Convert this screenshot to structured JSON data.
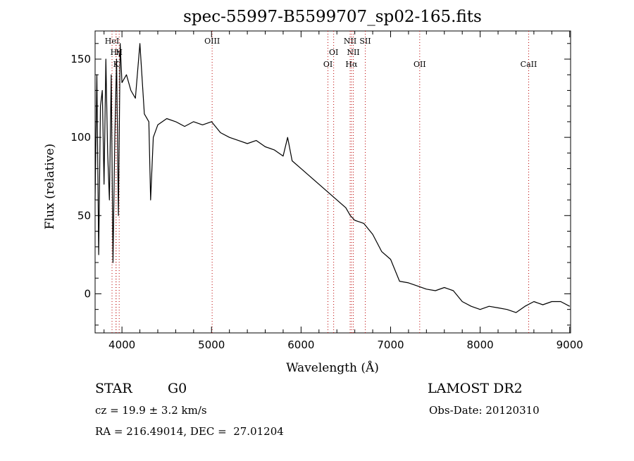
{
  "chart_data": {
    "type": "line",
    "title": "spec-55997-B5599707_sp02-165.fits",
    "xlabel": "Wavelength (Å)",
    "ylabel": "Flux (relative)",
    "xlim": [
      3700,
      9010
    ],
    "ylim": [
      -25,
      168
    ],
    "xticks": [
      4000,
      5000,
      6000,
      7000,
      8000,
      9000
    ],
    "yticks": [
      0,
      50,
      100,
      150
    ],
    "grid": false,
    "legend": "none",
    "series": [
      {
        "x": [
          3700,
          3720,
          3740,
          3760,
          3780,
          3800,
          3820,
          3840,
          3860,
          3880,
          3900,
          3920,
          3940,
          3960,
          3980,
          4000,
          4050,
          4100,
          4150,
          4200,
          4250,
          4300,
          4320,
          4350,
          4400,
          4500,
          4600,
          4700,
          4800,
          4900,
          5000,
          5100,
          5200,
          5300,
          5400,
          5500,
          5600,
          5700,
          5800,
          5850,
          5900,
          6000,
          6100,
          6200,
          6300,
          6400,
          6500,
          6550,
          6600,
          6700,
          6800,
          6900,
          7000,
          7100,
          7200,
          7300,
          7400,
          7500,
          7600,
          7700,
          7800,
          7900,
          8000,
          8100,
          8200,
          8300,
          8400,
          8500,
          8600,
          8700,
          8800,
          8900,
          9000
        ],
        "y": [
          60,
          140,
          25,
          120,
          130,
          70,
          150,
          90,
          60,
          140,
          20,
          100,
          150,
          50,
          160,
          135,
          140,
          130,
          125,
          160,
          115,
          110,
          60,
          100,
          108,
          112,
          110,
          107,
          110,
          108,
          110,
          103,
          100,
          98,
          96,
          98,
          94,
          92,
          88,
          100,
          85,
          80,
          75,
          70,
          65,
          60,
          55,
          50,
          47,
          45,
          38,
          27,
          22,
          8,
          7,
          5,
          3,
          2,
          4,
          2,
          -5,
          -8,
          -10,
          -8,
          -9,
          -10,
          -12,
          -8,
          -5,
          -7,
          -5,
          -5,
          -8
        ]
      }
    ],
    "lines": [
      {
        "label": "HeI",
        "x": 3889
      },
      {
        "label": "Hγ",
        "x": 3934
      },
      {
        "label": "H",
        "x": 3969
      },
      {
        "label": "K",
        "x": 3934
      },
      {
        "label": "OIII",
        "x": 5007
      },
      {
        "label": "OI",
        "x": 6300
      },
      {
        "label": "OI",
        "x": 6364
      },
      {
        "label": "NII",
        "x": 6548
      },
      {
        "label": "NII",
        "x": 6583
      },
      {
        "label": "Hα",
        "x": 6563
      },
      {
        "label": "SII",
        "x": 6717
      },
      {
        "label": "OII",
        "x": 7325
      },
      {
        "label": "CaII",
        "x": 8542
      }
    ]
  },
  "info": {
    "object_type": "STAR",
    "subclass": "G0",
    "survey": "LAMOST DR2",
    "cz": "cz = 19.9 ± 3.2 km/s",
    "obs_date": "Obs-Date: 20120310",
    "coords": "RA = 216.49014, DEC =  27.01204"
  },
  "colors": {
    "line": "#000000",
    "marker_line": "#bb0000",
    "axis": "#000000"
  }
}
